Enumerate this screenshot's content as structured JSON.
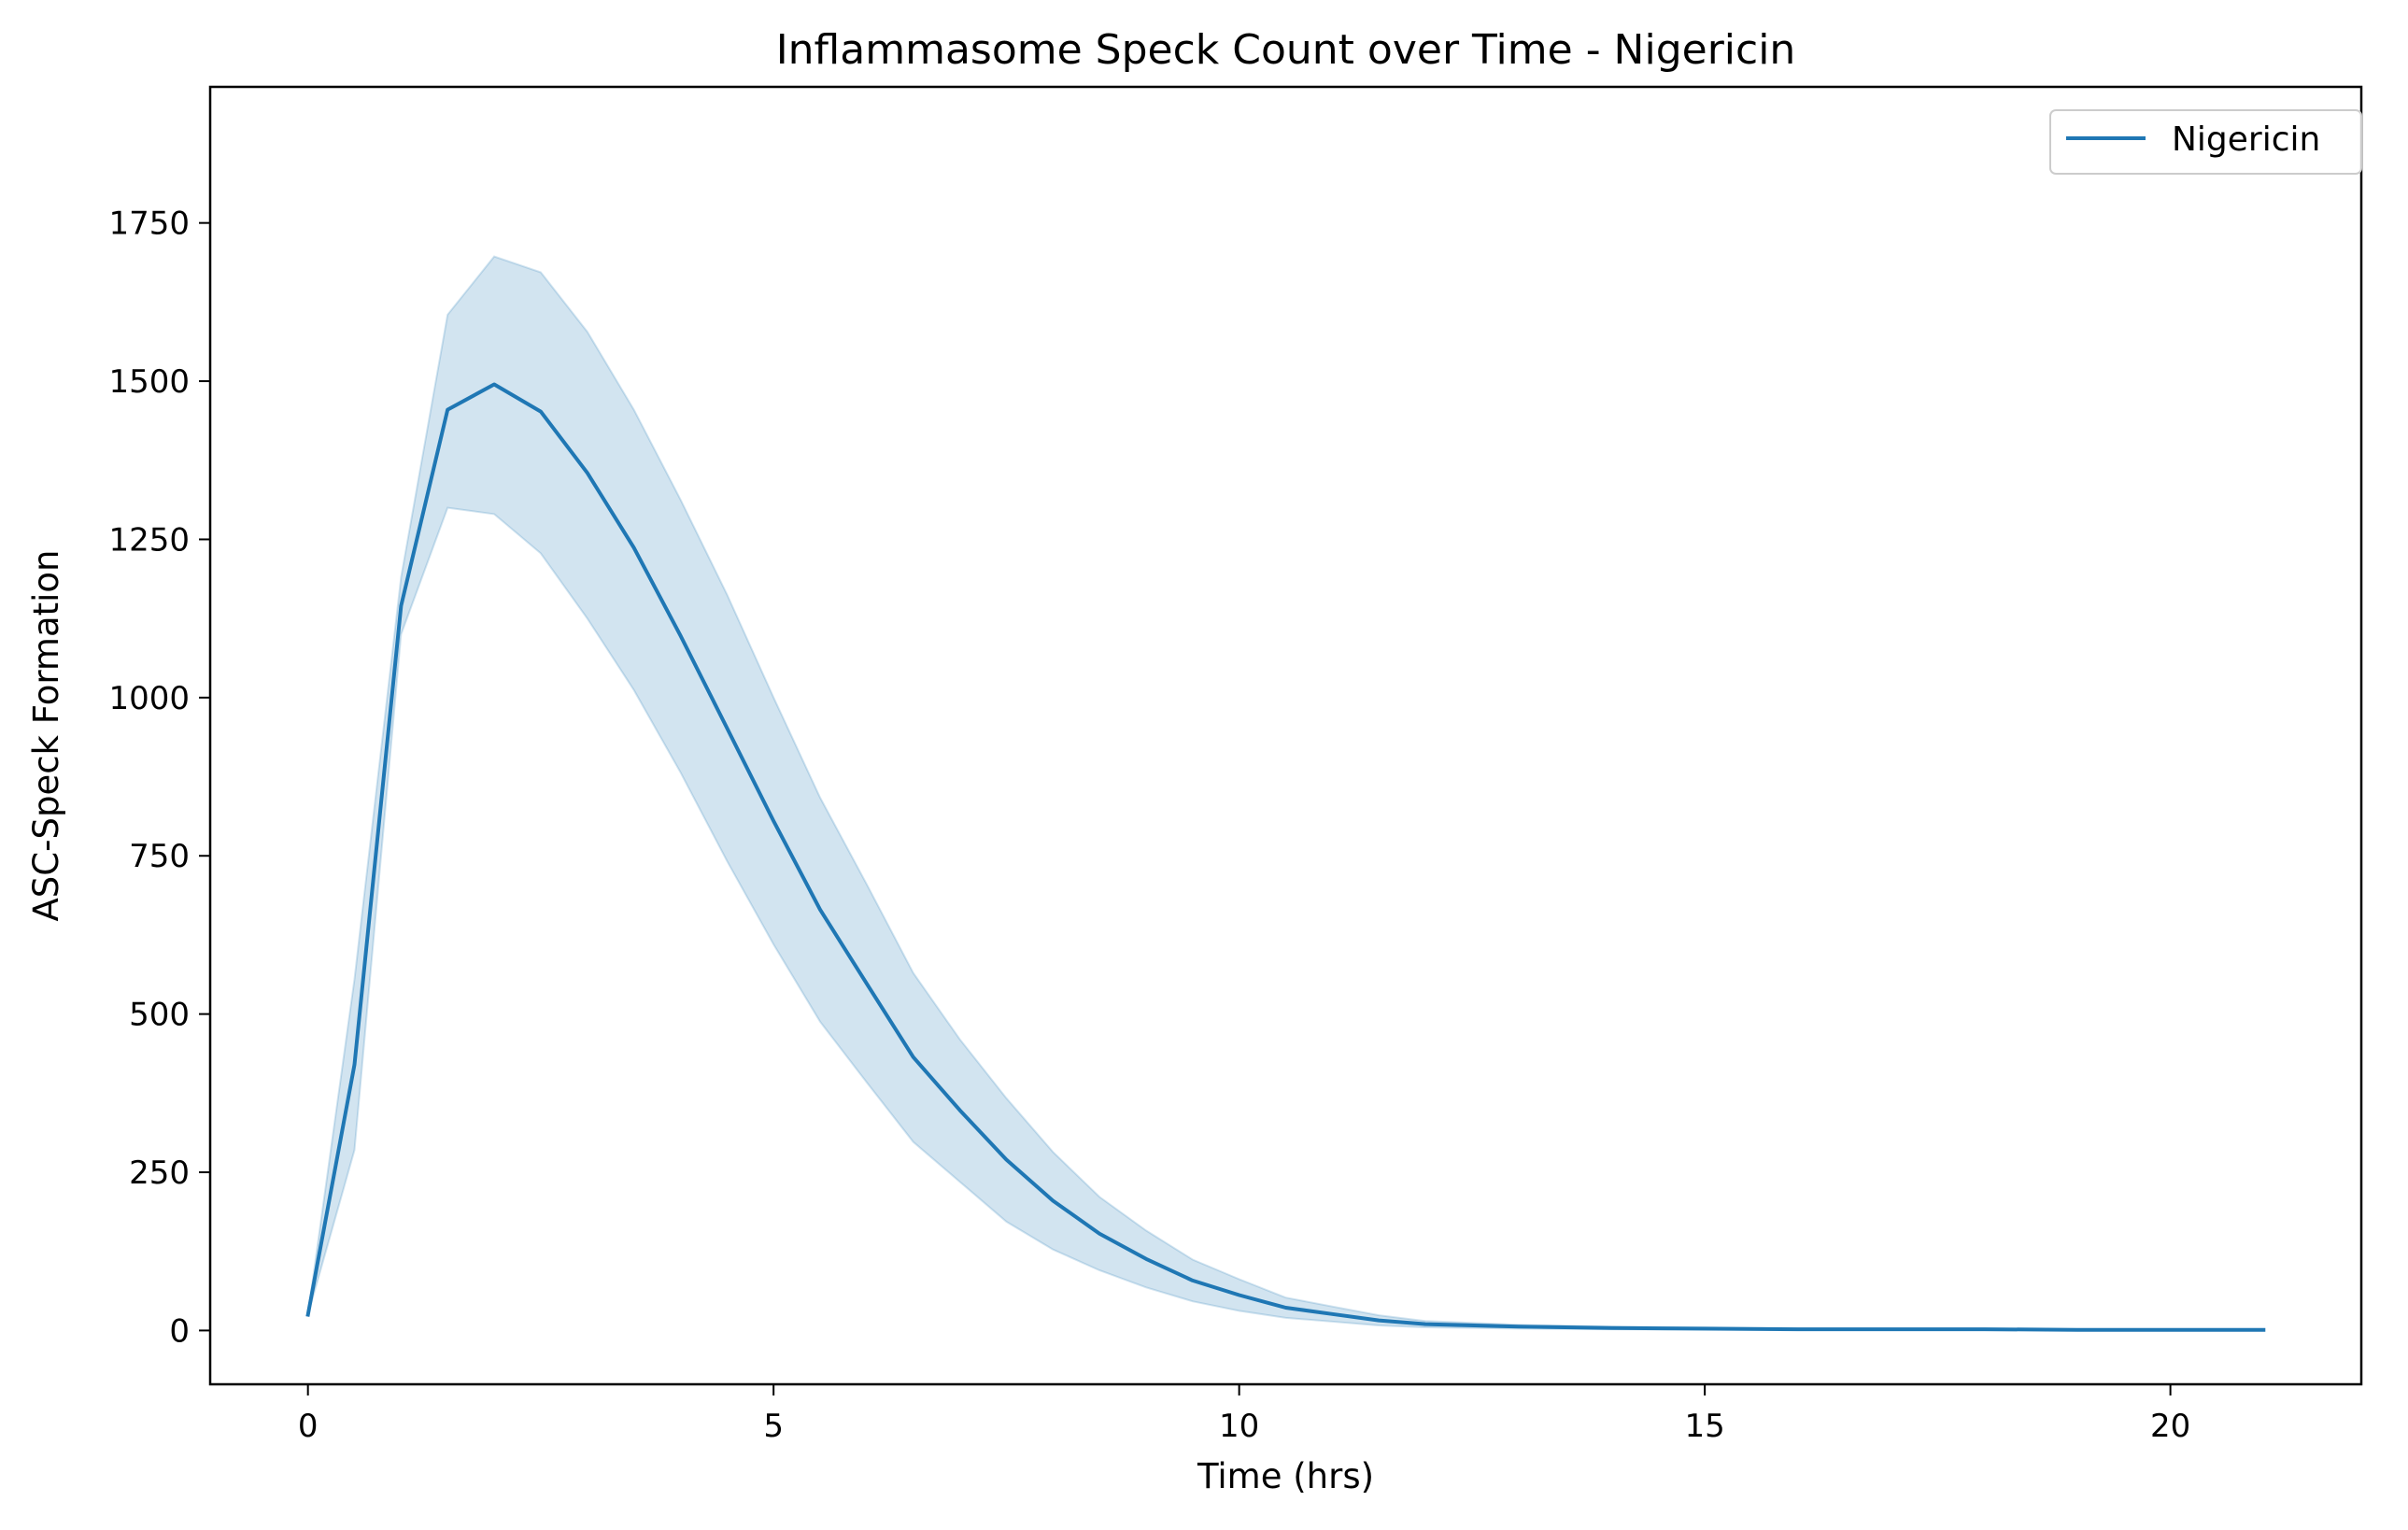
{
  "chart_data": {
    "type": "line",
    "title": "Inflammasome Speck Count over Time - Nigericin",
    "xlabel": "Time (hrs)",
    "ylabel": "ASC-Speck Formation",
    "xlim": [
      -1.05,
      22.05
    ],
    "ylim": [
      -85,
      1965
    ],
    "xticks": [
      0,
      5,
      10,
      15,
      20
    ],
    "yticks": [
      0,
      250,
      500,
      750,
      1000,
      1250,
      1500,
      1750
    ],
    "grid": false,
    "legend_position": "top-right",
    "series": [
      {
        "name": "Nigericin",
        "color": "#1f77b4",
        "band_color": "#1f77b4",
        "x": [
          0,
          0.5,
          1,
          1.5,
          2,
          2.5,
          3,
          3.5,
          4,
          4.5,
          5,
          5.5,
          6,
          6.5,
          7,
          7.5,
          8,
          8.5,
          9,
          9.5,
          10,
          10.5,
          11,
          11.5,
          12,
          13,
          14,
          15,
          16,
          17,
          18,
          19,
          20,
          21
        ],
        "y": [
          25,
          420,
          1145,
          1455,
          1495,
          1452,
          1355,
          1237,
          1098,
          952,
          805,
          665,
          548,
          432,
          348,
          270,
          205,
          153,
          113,
          79,
          56,
          36,
          26,
          16,
          10,
          6,
          4,
          3,
          2,
          2,
          2,
          1,
          1,
          1
        ],
        "lower": [
          25,
          285,
          1100,
          1300,
          1290,
          1228,
          1125,
          1012,
          882,
          742,
          610,
          488,
          392,
          298,
          235,
          172,
          128,
          95,
          68,
          46,
          31,
          20,
          14,
          8,
          5,
          3,
          2,
          1,
          1,
          1,
          1,
          1,
          1,
          1
        ],
        "upper": [
          25,
          555,
          1190,
          1605,
          1697,
          1672,
          1578,
          1455,
          1313,
          1163,
          1000,
          842,
          705,
          565,
          460,
          367,
          282,
          211,
          158,
          112,
          81,
          52,
          38,
          24,
          15,
          9,
          6,
          4,
          3,
          3,
          3,
          2,
          2,
          2
        ]
      }
    ]
  }
}
